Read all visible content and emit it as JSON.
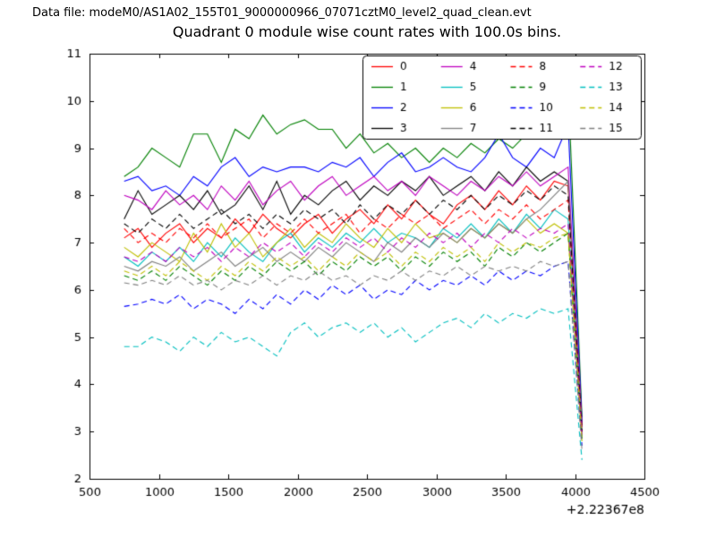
{
  "header": {
    "data_file_label": "Data file: modeM0/AS1A02_155T01_9000000966_07071cztM0_level2_quad_clean.evt"
  },
  "chart_data": {
    "type": "line",
    "title": "Quadrant 0 module wise count rates with 100.0s bins.",
    "xlabel": "",
    "ylabel": "",
    "x_offset_label": "+2.22367e8",
    "xlim": [
      500,
      4500
    ],
    "ylim": [
      2,
      11
    ],
    "xticks": [
      500,
      1000,
      1500,
      2000,
      2500,
      3000,
      3500,
      4000,
      4500
    ],
    "yticks": [
      2,
      3,
      4,
      5,
      6,
      7,
      8,
      9,
      10,
      11
    ],
    "grid": false,
    "legend_position": "upper right",
    "legend_ncol": 4,
    "x": [
      750,
      850,
      950,
      1050,
      1150,
      1250,
      1350,
      1450,
      1550,
      1650,
      1750,
      1850,
      1950,
      2050,
      2150,
      2250,
      2350,
      2450,
      2550,
      2650,
      2750,
      2850,
      2950,
      3050,
      3150,
      3250,
      3350,
      3450,
      3550,
      3650,
      3750,
      3850,
      3950,
      4050
    ],
    "series": [
      {
        "name": "0",
        "color": "#ff0000",
        "dash": "solid",
        "values": [
          7.1,
          7.3,
          6.9,
          7.2,
          7.4,
          7.0,
          7.3,
          7.1,
          7.5,
          7.2,
          7.6,
          7.3,
          7.1,
          7.4,
          7.6,
          7.2,
          7.5,
          7.7,
          7.4,
          7.8,
          7.5,
          7.9,
          7.6,
          7.4,
          7.8,
          8.0,
          7.7,
          8.1,
          7.8,
          8.2,
          7.9,
          8.3,
          8.2,
          3.0
        ]
      },
      {
        "name": "1",
        "color": "#008000",
        "dash": "solid",
        "values": [
          8.4,
          8.6,
          9.0,
          8.8,
          8.6,
          9.3,
          9.3,
          8.7,
          9.4,
          9.2,
          9.7,
          9.3,
          9.5,
          9.6,
          9.4,
          9.4,
          9.0,
          9.3,
          8.9,
          9.1,
          8.8,
          9.0,
          8.7,
          9.0,
          8.8,
          9.1,
          8.9,
          9.2,
          9.0,
          9.3,
          9.6,
          9.9,
          10.3,
          3.3
        ]
      },
      {
        "name": "2",
        "color": "#0000ff",
        "dash": "solid",
        "values": [
          8.3,
          8.4,
          8.1,
          8.2,
          8.0,
          8.4,
          8.2,
          8.6,
          8.8,
          8.4,
          8.6,
          8.5,
          8.6,
          8.6,
          8.5,
          8.7,
          8.6,
          8.8,
          8.4,
          8.7,
          8.9,
          8.5,
          8.6,
          8.8,
          8.6,
          8.5,
          8.8,
          9.3,
          8.8,
          8.6,
          9.0,
          8.8,
          9.5,
          3.2
        ]
      },
      {
        "name": "3",
        "color": "#000000",
        "dash": "solid",
        "values": [
          7.5,
          8.1,
          7.6,
          7.8,
          8.0,
          7.7,
          8.1,
          7.6,
          7.8,
          8.2,
          7.7,
          8.3,
          7.6,
          8.0,
          7.8,
          8.1,
          8.3,
          7.9,
          8.2,
          8.0,
          8.3,
          8.1,
          8.4,
          8.0,
          8.2,
          8.4,
          8.1,
          8.5,
          8.2,
          8.6,
          8.3,
          8.5,
          8.3,
          3.1
        ]
      },
      {
        "name": "4",
        "color": "#bf00bf",
        "dash": "solid",
        "values": [
          8.0,
          7.9,
          7.7,
          8.1,
          7.8,
          8.0,
          7.7,
          8.2,
          7.9,
          8.3,
          7.8,
          8.1,
          8.3,
          7.9,
          8.2,
          8.4,
          8.0,
          8.2,
          8.4,
          8.1,
          8.3,
          8.0,
          8.4,
          8.2,
          8.0,
          8.3,
          8.1,
          8.4,
          8.2,
          8.5,
          8.2,
          8.4,
          8.6,
          3.1
        ]
      },
      {
        "name": "5",
        "color": "#00bfbf",
        "dash": "solid",
        "values": [
          6.7,
          6.5,
          6.8,
          6.6,
          6.9,
          6.6,
          7.0,
          6.7,
          7.1,
          6.8,
          6.6,
          7.0,
          7.2,
          6.8,
          7.1,
          6.9,
          7.2,
          7.0,
          7.3,
          7.0,
          7.2,
          7.1,
          6.9,
          7.3,
          7.1,
          7.4,
          7.1,
          7.5,
          7.2,
          7.6,
          7.3,
          7.7,
          7.5,
          2.9
        ]
      },
      {
        "name": "6",
        "color": "#bfbf00",
        "dash": "solid",
        "values": [
          6.9,
          6.7,
          7.0,
          6.8,
          6.6,
          7.2,
          6.8,
          7.4,
          6.9,
          7.2,
          6.7,
          7.0,
          7.3,
          6.9,
          7.2,
          7.0,
          7.4,
          7.1,
          6.9,
          7.3,
          7.0,
          7.4,
          7.1,
          7.2,
          7.0,
          7.3,
          7.1,
          7.4,
          7.2,
          7.5,
          7.2,
          7.4,
          7.2,
          2.8
        ]
      },
      {
        "name": "7",
        "color": "#808080",
        "dash": "solid",
        "values": [
          6.5,
          6.4,
          6.6,
          6.5,
          6.7,
          6.4,
          6.6,
          6.8,
          6.5,
          6.7,
          6.9,
          6.6,
          6.8,
          6.6,
          6.9,
          6.7,
          7.0,
          6.8,
          6.6,
          7.0,
          6.8,
          7.1,
          6.9,
          7.2,
          7.0,
          7.3,
          7.1,
          7.4,
          7.2,
          7.5,
          7.7,
          8.0,
          8.3,
          3.0
        ]
      },
      {
        "name": "8",
        "color": "#ff0000",
        "dash": "dashed",
        "values": [
          7.3,
          7.0,
          7.2,
          7.0,
          7.3,
          7.1,
          7.4,
          7.1,
          7.3,
          7.5,
          7.1,
          7.4,
          7.2,
          7.5,
          7.2,
          7.4,
          7.6,
          7.2,
          7.5,
          7.3,
          7.6,
          7.4,
          7.6,
          7.3,
          7.5,
          7.7,
          7.4,
          7.7,
          7.5,
          7.8,
          7.5,
          7.7,
          7.9,
          3.0
        ]
      },
      {
        "name": "9",
        "color": "#008000",
        "dash": "dashed",
        "values": [
          6.3,
          6.2,
          6.4,
          6.2,
          6.5,
          6.3,
          6.1,
          6.4,
          6.2,
          6.5,
          6.3,
          6.6,
          6.4,
          6.6,
          6.3,
          6.6,
          6.4,
          6.7,
          6.5,
          6.7,
          6.4,
          6.7,
          6.5,
          6.8,
          6.6,
          6.8,
          6.5,
          6.9,
          6.7,
          7.0,
          6.8,
          7.0,
          7.2,
          2.8
        ]
      },
      {
        "name": "10",
        "color": "#0000ff",
        "dash": "dashed",
        "values": [
          5.65,
          5.7,
          5.8,
          5.7,
          5.9,
          5.6,
          5.8,
          5.7,
          5.5,
          5.8,
          5.6,
          5.9,
          5.7,
          6.0,
          5.8,
          6.1,
          5.9,
          6.1,
          5.8,
          6.0,
          5.9,
          6.2,
          6.0,
          6.2,
          6.1,
          6.3,
          6.1,
          6.4,
          6.2,
          6.4,
          6.3,
          6.5,
          6.6,
          2.7
        ]
      },
      {
        "name": "11",
        "color": "#000000",
        "dash": "dashed",
        "values": [
          7.4,
          7.2,
          7.5,
          7.3,
          7.6,
          7.3,
          7.5,
          7.7,
          7.4,
          7.6,
          7.3,
          7.6,
          7.4,
          7.7,
          7.5,
          7.7,
          7.4,
          7.8,
          7.5,
          7.8,
          7.6,
          7.9,
          7.6,
          7.9,
          7.7,
          8.0,
          7.7,
          8.0,
          7.8,
          8.1,
          7.9,
          8.2,
          8.0,
          3.0
        ]
      },
      {
        "name": "12",
        "color": "#bf00bf",
        "dash": "dashed",
        "values": [
          6.7,
          6.6,
          6.8,
          6.6,
          6.9,
          6.7,
          6.9,
          6.6,
          6.9,
          6.7,
          7.0,
          6.8,
          7.0,
          6.7,
          7.0,
          6.8,
          7.1,
          6.9,
          7.1,
          6.8,
          7.1,
          6.9,
          7.2,
          7.0,
          7.2,
          6.9,
          7.2,
          7.0,
          7.3,
          7.1,
          7.3,
          7.2,
          7.4,
          2.9
        ]
      },
      {
        "name": "13",
        "color": "#00bfbf",
        "dash": "dashed",
        "values": [
          4.8,
          4.8,
          5.0,
          4.9,
          4.7,
          5.0,
          4.8,
          5.1,
          4.9,
          5.0,
          4.8,
          4.6,
          5.1,
          5.3,
          5.0,
          5.2,
          5.3,
          5.1,
          5.3,
          5.0,
          5.2,
          4.9,
          5.1,
          5.3,
          5.4,
          5.2,
          5.5,
          5.3,
          5.5,
          5.4,
          5.6,
          5.5,
          5.6,
          2.4
        ]
      },
      {
        "name": "14",
        "color": "#bfbf00",
        "dash": "dashed",
        "values": [
          6.4,
          6.3,
          6.5,
          6.3,
          6.6,
          6.4,
          6.2,
          6.5,
          6.3,
          6.6,
          6.4,
          6.7,
          6.5,
          6.7,
          6.4,
          6.7,
          6.5,
          6.8,
          6.6,
          6.8,
          6.5,
          6.8,
          6.6,
          6.9,
          6.7,
          6.9,
          6.6,
          7.0,
          6.8,
          7.0,
          6.9,
          7.1,
          7.2,
          2.8
        ]
      },
      {
        "name": "15",
        "color": "#808080",
        "dash": "dashed",
        "values": [
          6.15,
          6.1,
          6.2,
          6.1,
          6.3,
          6.1,
          6.2,
          6.0,
          6.2,
          6.1,
          6.3,
          6.1,
          6.3,
          6.2,
          6.4,
          6.2,
          6.3,
          6.1,
          6.3,
          6.2,
          6.4,
          6.2,
          6.4,
          6.3,
          6.5,
          6.3,
          6.5,
          6.4,
          6.5,
          6.4,
          6.6,
          6.5,
          6.6,
          2.6
        ]
      }
    ]
  }
}
